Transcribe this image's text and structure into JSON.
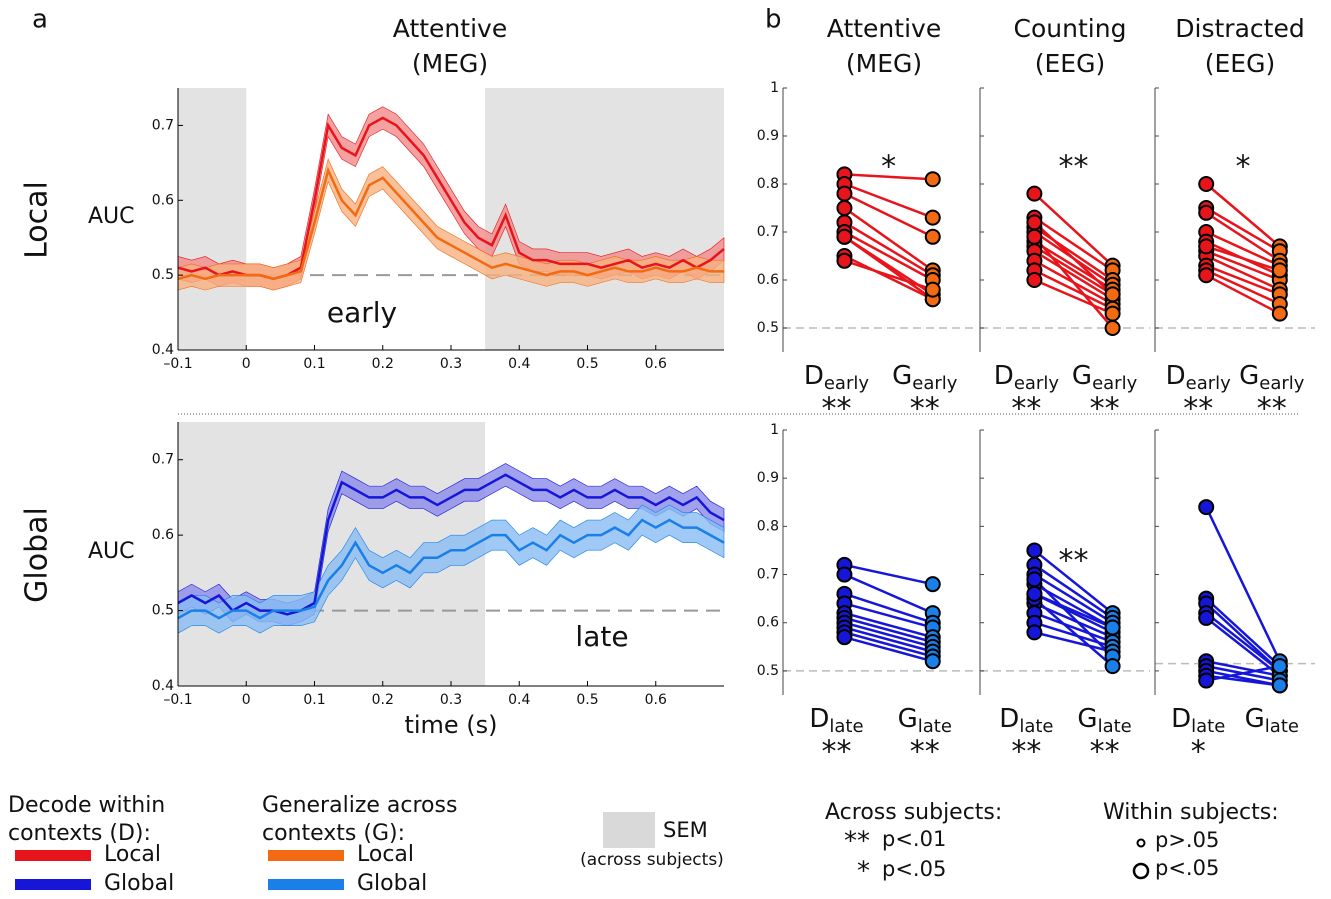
{
  "panel_letters": [
    "a",
    "b"
  ],
  "row_labels": [
    "Local",
    "Global"
  ],
  "chart_data": [
    {
      "type": "timecourse",
      "title": [
        "Attentive",
        "(MEG)"
      ],
      "ylabel": "AUC",
      "annotation": "early",
      "x": [
        -0.1,
        -0.08,
        -0.06,
        -0.04,
        -0.02,
        0,
        0.02,
        0.04,
        0.06,
        0.08,
        0.1,
        0.12,
        0.14,
        0.16,
        0.18,
        0.2,
        0.22,
        0.24,
        0.26,
        0.28,
        0.3,
        0.32,
        0.34,
        0.36,
        0.38,
        0.4,
        0.42,
        0.44,
        0.46,
        0.48,
        0.5,
        0.52,
        0.54,
        0.56,
        0.58,
        0.6,
        0.62,
        0.64,
        0.66,
        0.68,
        0.7
      ],
      "series": [
        {
          "name": "Local",
          "color": "#e8141b",
          "band_color": "#f08a8a",
          "sem": 0.015,
          "values": [
            0.51,
            0.505,
            0.51,
            0.5,
            0.505,
            0.5,
            0.5,
            0.495,
            0.5,
            0.51,
            0.6,
            0.7,
            0.67,
            0.66,
            0.7,
            0.71,
            0.7,
            0.68,
            0.66,
            0.63,
            0.6,
            0.57,
            0.55,
            0.54,
            0.58,
            0.53,
            0.52,
            0.52,
            0.515,
            0.515,
            0.515,
            0.51,
            0.515,
            0.52,
            0.51,
            0.515,
            0.51,
            0.52,
            0.51,
            0.52,
            0.535
          ]
        },
        {
          "name": "Local",
          "color": "#f26a14",
          "band_color": "#f7b27f",
          "sem": 0.015,
          "values": [
            0.495,
            0.5,
            0.495,
            0.5,
            0.5,
            0.5,
            0.5,
            0.495,
            0.5,
            0.505,
            0.57,
            0.64,
            0.6,
            0.58,
            0.62,
            0.63,
            0.61,
            0.59,
            0.57,
            0.55,
            0.54,
            0.53,
            0.52,
            0.51,
            0.515,
            0.51,
            0.505,
            0.5,
            0.505,
            0.505,
            0.5,
            0.505,
            0.51,
            0.505,
            0.505,
            0.51,
            0.505,
            0.505,
            0.51,
            0.505,
            0.505
          ]
        }
      ],
      "xlim": [
        -0.1,
        0.7
      ],
      "ylim": [
        0.4,
        0.75
      ],
      "xticks": [
        {
          "value": -0.1,
          "label": "–0.1"
        },
        0,
        0.1,
        0.2,
        0.3,
        0.4,
        0.5,
        0.6
      ],
      "yticks": [
        0.4,
        0.5,
        0.6,
        0.7
      ],
      "shaded": [
        [
          -0.1,
          0
        ],
        [
          0.35,
          0.7
        ]
      ],
      "chance": 0.5
    },
    {
      "type": "timecourse",
      "ylabel": "AUC",
      "xlabel": "time (s)",
      "annotation": "late",
      "x": [
        -0.1,
        -0.08,
        -0.06,
        -0.04,
        -0.02,
        0,
        0.02,
        0.04,
        0.06,
        0.08,
        0.1,
        0.12,
        0.14,
        0.16,
        0.18,
        0.2,
        0.22,
        0.24,
        0.26,
        0.28,
        0.3,
        0.32,
        0.34,
        0.36,
        0.38,
        0.4,
        0.42,
        0.44,
        0.46,
        0.48,
        0.5,
        0.52,
        0.54,
        0.56,
        0.58,
        0.6,
        0.62,
        0.64,
        0.66,
        0.68,
        0.7
      ],
      "series": [
        {
          "name": "Global",
          "color": "#1616d9",
          "band_color": "#8a8ae8",
          "sem": 0.015,
          "values": [
            0.51,
            0.52,
            0.51,
            0.52,
            0.5,
            0.51,
            0.5,
            0.5,
            0.495,
            0.5,
            0.51,
            0.62,
            0.67,
            0.66,
            0.65,
            0.65,
            0.66,
            0.65,
            0.65,
            0.64,
            0.65,
            0.66,
            0.66,
            0.67,
            0.68,
            0.67,
            0.66,
            0.66,
            0.65,
            0.66,
            0.65,
            0.65,
            0.66,
            0.65,
            0.65,
            0.64,
            0.65,
            0.64,
            0.65,
            0.63,
            0.62
          ]
        },
        {
          "name": "Global",
          "color": "#1a7fe8",
          "band_color": "#88bdf2",
          "sem": 0.02,
          "values": [
            0.49,
            0.5,
            0.5,
            0.49,
            0.5,
            0.5,
            0.49,
            0.5,
            0.5,
            0.5,
            0.505,
            0.54,
            0.56,
            0.59,
            0.56,
            0.55,
            0.56,
            0.55,
            0.57,
            0.57,
            0.58,
            0.58,
            0.59,
            0.6,
            0.6,
            0.58,
            0.59,
            0.58,
            0.6,
            0.59,
            0.6,
            0.6,
            0.61,
            0.6,
            0.62,
            0.61,
            0.62,
            0.61,
            0.61,
            0.6,
            0.59
          ]
        }
      ],
      "xlim": [
        -0.1,
        0.7
      ],
      "ylim": [
        0.4,
        0.75
      ],
      "xticks": [
        {
          "value": -0.1,
          "label": "–0.1"
        },
        0,
        0.1,
        0.2,
        0.3,
        0.4,
        0.5,
        0.6
      ],
      "yticks": [
        0.4,
        0.5,
        0.6,
        0.7
      ],
      "shaded": [
        [
          -0.1,
          0.35
        ]
      ],
      "chance": 0.5
    },
    {
      "type": "paired",
      "title": [
        "Attentive",
        "(MEG)"
      ],
      "star": "*",
      "stars": [
        "**",
        "**"
      ],
      "categories": [
        {
          "main": "D",
          "sub": "early"
        },
        {
          "main": "G",
          "sub": "early"
        }
      ],
      "colors": [
        "#e8141b",
        "#f26a14"
      ],
      "d": [
        0.82,
        0.8,
        0.78,
        0.75,
        0.72,
        0.7,
        0.69,
        0.69,
        0.65,
        0.64
      ],
      "g": [
        0.81,
        0.73,
        0.69,
        0.62,
        0.61,
        0.6,
        0.57,
        0.56,
        0.56,
        0.58
      ],
      "ylim": [
        0.45,
        1
      ],
      "yticks": [
        0.5,
        0.6,
        0.7,
        0.8,
        0.9,
        1
      ],
      "tick_labels": true,
      "chance": 0.5
    },
    {
      "type": "paired",
      "title": [
        "Counting",
        "(EEG)"
      ],
      "star": "**",
      "stars": [
        "**",
        "**"
      ],
      "categories": [
        {
          "main": "D",
          "sub": "early"
        },
        {
          "main": "G",
          "sub": "early"
        }
      ],
      "colors": [
        "#e8141b",
        "#f26a14"
      ],
      "d": [
        0.78,
        0.73,
        0.71,
        0.7,
        0.68,
        0.67,
        0.66,
        0.64,
        0.62,
        0.6,
        0.69,
        0.72
      ],
      "g": [
        0.63,
        0.62,
        0.6,
        0.59,
        0.58,
        0.57,
        0.56,
        0.55,
        0.54,
        0.53,
        0.5,
        0.57
      ],
      "ylim": [
        0.45,
        1
      ],
      "yticks": [
        0.5,
        0.6,
        0.7,
        0.8,
        0.9,
        1
      ],
      "tick_labels": false,
      "chance": 0.5
    },
    {
      "type": "paired",
      "title": [
        "Distracted",
        "(EEG)"
      ],
      "star": "*",
      "stars": [
        "**",
        "**"
      ],
      "categories": [
        {
          "main": "D",
          "sub": "early"
        },
        {
          "main": "G",
          "sub": "early"
        }
      ],
      "colors": [
        "#e8141b",
        "#f26a14"
      ],
      "d": [
        0.8,
        0.75,
        0.74,
        0.7,
        0.68,
        0.66,
        0.65,
        0.63,
        0.62,
        0.61,
        0.67
      ],
      "g": [
        0.67,
        0.66,
        0.64,
        0.63,
        0.61,
        0.6,
        0.58,
        0.57,
        0.55,
        0.53,
        0.62
      ],
      "ylim": [
        0.45,
        1
      ],
      "yticks": [
        0.5,
        0.6,
        0.7,
        0.8,
        0.9,
        1
      ],
      "tick_labels": false,
      "chance": 0.5
    },
    {
      "type": "paired",
      "stars": [
        "**",
        "**"
      ],
      "categories": [
        {
          "main": "D",
          "sub": "late"
        },
        {
          "main": "G",
          "sub": "late"
        }
      ],
      "colors": [
        "#1616d9",
        "#1a7fe8"
      ],
      "d": [
        0.72,
        0.7,
        0.66,
        0.64,
        0.62,
        0.61,
        0.6,
        0.59,
        0.58,
        0.57
      ],
      "g": [
        0.68,
        0.62,
        0.6,
        0.59,
        0.57,
        0.56,
        0.55,
        0.54,
        0.53,
        0.52
      ],
      "ylim": [
        0.45,
        1
      ],
      "yticks": [
        0.5,
        0.6,
        0.7,
        0.8,
        0.9,
        1
      ],
      "tick_labels": true,
      "chance": 0.5
    },
    {
      "type": "paired",
      "star": "**",
      "stars": [
        "**",
        "**"
      ],
      "categories": [
        {
          "main": "D",
          "sub": "late"
        },
        {
          "main": "G",
          "sub": "late"
        }
      ],
      "colors": [
        "#1616d9",
        "#1a7fe8"
      ],
      "d": [
        0.75,
        0.72,
        0.7,
        0.68,
        0.66,
        0.64,
        0.62,
        0.6,
        0.58,
        0.69,
        0.65,
        0.66
      ],
      "g": [
        0.62,
        0.61,
        0.6,
        0.59,
        0.58,
        0.57,
        0.56,
        0.55,
        0.54,
        0.53,
        0.51,
        0.59
      ],
      "ylim": [
        0.45,
        1
      ],
      "yticks": [
        0.5,
        0.6,
        0.7,
        0.8,
        0.9,
        1
      ],
      "tick_labels": false,
      "chance": 0.5
    },
    {
      "type": "paired",
      "stars": [
        "*"
      ],
      "categories": [
        {
          "main": "D",
          "sub": "late"
        },
        {
          "main": "G",
          "sub": "late"
        }
      ],
      "colors": [
        "#1616d9",
        "#1a7fe8"
      ],
      "d": [
        0.84,
        0.65,
        0.64,
        0.62,
        0.61,
        0.52,
        0.51,
        0.5,
        0.49,
        0.48
      ],
      "g": [
        0.52,
        0.51,
        0.5,
        0.5,
        0.49,
        0.49,
        0.48,
        0.47,
        0.47,
        0.51
      ],
      "ylim": [
        0.45,
        1
      ],
      "yticks": [
        0.5,
        0.6,
        0.7,
        0.8,
        0.9,
        1
      ],
      "tick_labels": false,
      "chance": 0.515
    }
  ],
  "legend": {
    "decode_title": [
      "Decode within",
      "contexts (D):"
    ],
    "generalize_title": [
      "Generalize across",
      "contexts (G):"
    ],
    "sem": [
      "SEM",
      "(across subjects)"
    ],
    "across": {
      "title": "Across subjects:",
      "items": [
        [
          "**",
          "p<.01"
        ],
        [
          "*",
          "p<.05"
        ]
      ]
    },
    "within": {
      "title": "Within subjects:",
      "items": [
        "p>.05",
        "p<.05"
      ]
    }
  }
}
